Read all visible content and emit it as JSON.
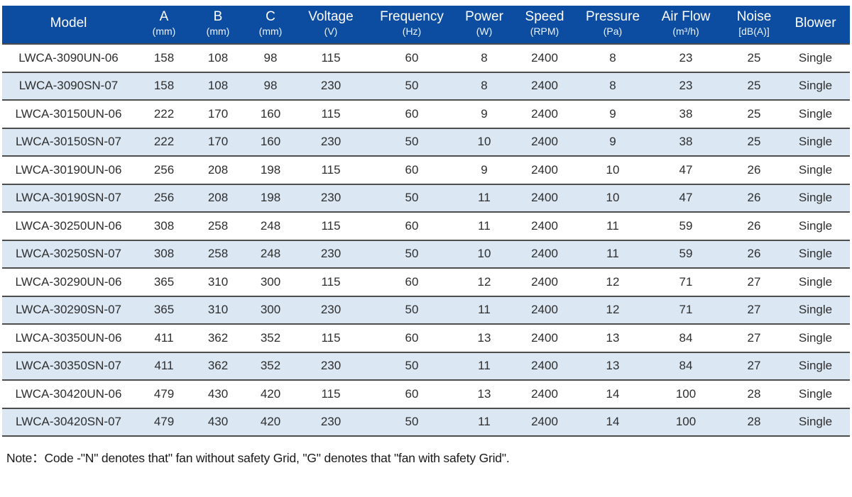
{
  "table": {
    "columns": [
      {
        "label": "Model",
        "unit": ""
      },
      {
        "label": "A",
        "unit": "(mm)"
      },
      {
        "label": "B",
        "unit": "(mm)"
      },
      {
        "label": "C",
        "unit": "(mm)"
      },
      {
        "label": "Voltage",
        "unit": "(V)"
      },
      {
        "label": "Frequency",
        "unit": "(Hz)"
      },
      {
        "label": "Power",
        "unit": "(W)"
      },
      {
        "label": "Speed",
        "unit": "(RPM)"
      },
      {
        "label": "Pressure",
        "unit": "(Pa)"
      },
      {
        "label": "Air Flow",
        "unit": "(m³/h)"
      },
      {
        "label": "Noise",
        "unit": "[dB(A)]"
      },
      {
        "label": "Blower",
        "unit": ""
      }
    ],
    "rows": [
      [
        "LWCA-3090UN-06",
        "158",
        "108",
        "98",
        "115",
        "60",
        "8",
        "2400",
        "8",
        "23",
        "25",
        "Single"
      ],
      [
        "LWCA-3090SN-07",
        "158",
        "108",
        "98",
        "230",
        "50",
        "8",
        "2400",
        "8",
        "23",
        "25",
        "Single"
      ],
      [
        "LWCA-30150UN-06",
        "222",
        "170",
        "160",
        "115",
        "60",
        "9",
        "2400",
        "9",
        "38",
        "25",
        "Single"
      ],
      [
        "LWCA-30150SN-07",
        "222",
        "170",
        "160",
        "230",
        "50",
        "10",
        "2400",
        "9",
        "38",
        "25",
        "Single"
      ],
      [
        "LWCA-30190UN-06",
        "256",
        "208",
        "198",
        "115",
        "60",
        "9",
        "2400",
        "10",
        "47",
        "26",
        "Single"
      ],
      [
        "LWCA-30190SN-07",
        "256",
        "208",
        "198",
        "230",
        "50",
        "11",
        "2400",
        "10",
        "47",
        "26",
        "Single"
      ],
      [
        "LWCA-30250UN-06",
        "308",
        "258",
        "248",
        "115",
        "60",
        "11",
        "2400",
        "11",
        "59",
        "26",
        "Single"
      ],
      [
        "LWCA-30250SN-07",
        "308",
        "258",
        "248",
        "230",
        "50",
        "10",
        "2400",
        "11",
        "59",
        "26",
        "Single"
      ],
      [
        "LWCA-30290UN-06",
        "365",
        "310",
        "300",
        "115",
        "60",
        "12",
        "2400",
        "12",
        "71",
        "27",
        "Single"
      ],
      [
        "LWCA-30290SN-07",
        "365",
        "310",
        "300",
        "230",
        "50",
        "11",
        "2400",
        "12",
        "71",
        "27",
        "Single"
      ],
      [
        "LWCA-30350UN-06",
        "411",
        "362",
        "352",
        "115",
        "60",
        "13",
        "2400",
        "13",
        "84",
        "27",
        "Single"
      ],
      [
        "LWCA-30350SN-07",
        "411",
        "362",
        "352",
        "230",
        "50",
        "11",
        "2400",
        "13",
        "84",
        "27",
        "Single"
      ],
      [
        "LWCA-30420UN-06",
        "479",
        "430",
        "420",
        "115",
        "60",
        "13",
        "2400",
        "14",
        "100",
        "28",
        "Single"
      ],
      [
        "LWCA-30420SN-07",
        "479",
        "430",
        "420",
        "230",
        "50",
        "11",
        "2400",
        "14",
        "100",
        "28",
        "Single"
      ]
    ]
  },
  "note": {
    "text": "Note：Code -\"N\" denotes that\" fan without safety Grid, \"G\" denotes that \"fan with safety Grid\"."
  },
  "colors": {
    "header_bg": "#0c4da2",
    "header_text": "#ffffff",
    "row_alt_bg": "#dbe7f3",
    "row_bg": "#ffffff",
    "separator": "#4d4d4d",
    "cell_text": "#2e2e2e",
    "note_text": "#1a1a1a"
  }
}
